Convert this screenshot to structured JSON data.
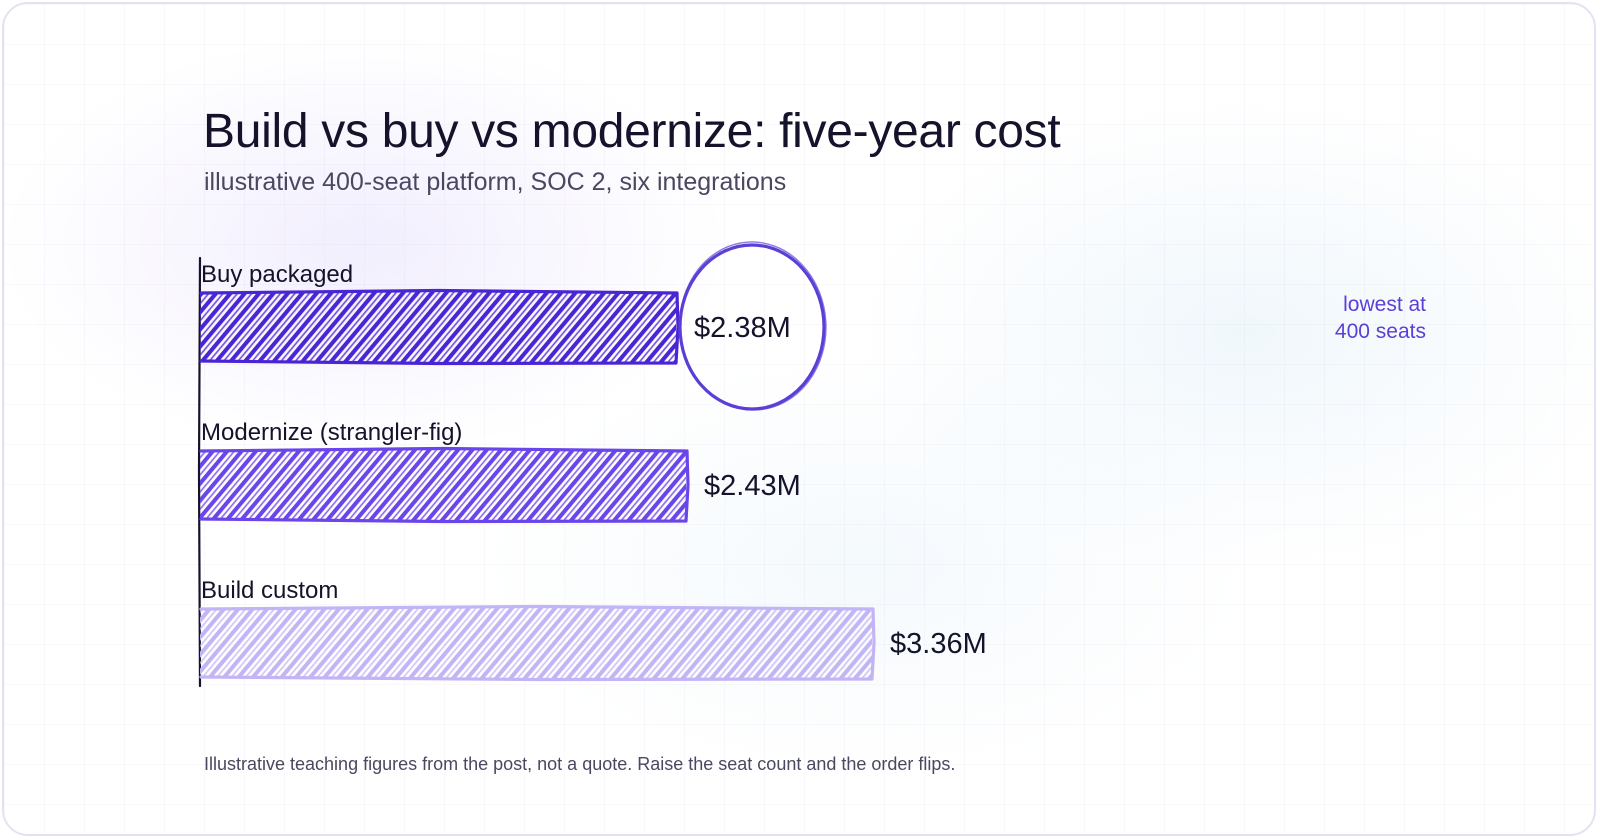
{
  "header": {
    "title": "Build vs buy vs modernize: five-year cost",
    "subtitle": "illustrative 400-seat platform, SOC 2, six integrations"
  },
  "footnote": "Illustrative teaching figures from the post, not a quote. Raise the seat count and the order flips.",
  "chart_data": {
    "type": "bar",
    "orientation": "horizontal",
    "title": "Build vs buy vs modernize: five-year cost",
    "subtitle": "illustrative 400-seat platform, SOC 2, six integrations",
    "categories": [
      "Buy packaged",
      "Modernize (strangler-fig)",
      "Build custom"
    ],
    "values": [
      2.38,
      2.43,
      3.36
    ],
    "value_labels": [
      "$2.38M",
      "$2.43M",
      "$3.36M"
    ],
    "unit": "$M",
    "colors": [
      "#4a25d4",
      "#6a45ea",
      "#c3b4f5"
    ],
    "fill_style": "hand-drawn hatching",
    "grid": false,
    "highlight": {
      "category": "Buy packaged",
      "style": "circle",
      "annotation": [
        "lowest at",
        "400 seats"
      ],
      "color": "#5b3fd6"
    }
  }
}
